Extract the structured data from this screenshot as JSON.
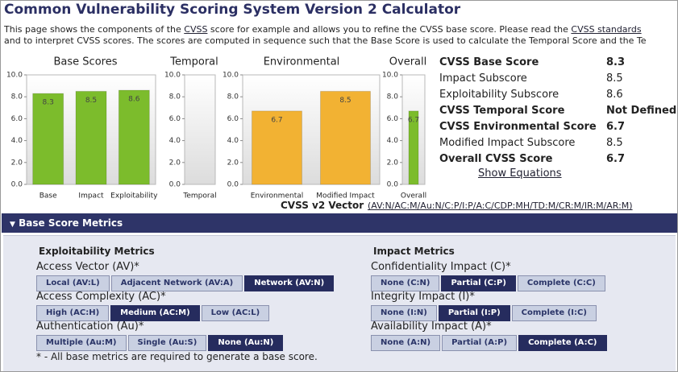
{
  "header": {
    "title": "Common Vulnerability Scoring System Version 2 Calculator",
    "description": [
      [
        "This page shows the components of the ",
        "CVSS",
        " score for example and allows you to refine the CVSS base score. Please read the ",
        "CVSS standards"
      ],
      [
        "and to interpret CVSS scores. The scores are computed in sequence such that the Base Score is used to calculate the Temporal Score and the Te"
      ]
    ]
  },
  "chart_data": [
    {
      "type": "bar",
      "title": "Base Scores",
      "categories": [
        "Base",
        "Impact",
        "Exploitability"
      ],
      "values": [
        8.3,
        8.5,
        8.6
      ],
      "color": "#7cbc2c",
      "ylim": [
        0,
        10
      ],
      "yticks": [
        {
          "value": 0,
          "label": "0.0"
        },
        {
          "value": 2,
          "label": "2.0"
        },
        {
          "value": 4,
          "label": "4.0"
        },
        {
          "value": 6,
          "label": "6.0"
        },
        {
          "value": 8,
          "label": "8.0"
        },
        {
          "value": 10,
          "label": "10.0"
        }
      ]
    },
    {
      "type": "bar",
      "title": "Temporal",
      "categories": [
        "Temporal"
      ],
      "values": [
        null
      ],
      "color": "#7cbc2c",
      "ylim": [
        0,
        10
      ],
      "yticks": [
        {
          "value": 0,
          "label": "0.0"
        },
        {
          "value": 2,
          "label": "2.0"
        },
        {
          "value": 4,
          "label": "4.0"
        },
        {
          "value": 6,
          "label": "6.0"
        },
        {
          "value": 8,
          "label": "8.0"
        },
        {
          "value": 10,
          "label": "10.0"
        }
      ]
    },
    {
      "type": "bar",
      "title": "Environmental",
      "categories": [
        "Environmental",
        "Modified Impact"
      ],
      "values": [
        6.7,
        8.5
      ],
      "color": "#f2b233",
      "ylim": [
        0,
        10
      ],
      "yticks": [
        {
          "value": 0,
          "label": "0.0"
        },
        {
          "value": 2,
          "label": "2.0"
        },
        {
          "value": 4,
          "label": "4.0"
        },
        {
          "value": 6,
          "label": "6.0"
        },
        {
          "value": 8,
          "label": "8.0"
        },
        {
          "value": 10,
          "label": "10.0"
        }
      ]
    },
    {
      "type": "bar",
      "title": "Overall",
      "categories": [
        "Overall"
      ],
      "values": [
        6.7
      ],
      "color": "#7cbc2c",
      "ylim": [
        0,
        10
      ],
      "yticks": [
        {
          "value": 0,
          "label": "0.0"
        },
        {
          "value": 2,
          "label": "2.0"
        },
        {
          "value": 4,
          "label": "4.0"
        },
        {
          "value": 6,
          "label": "6.0"
        },
        {
          "value": 8,
          "label": "8.0"
        },
        {
          "value": 10,
          "label": "10.0"
        }
      ]
    }
  ],
  "summary": {
    "rows": [
      {
        "label": "CVSS Base Score",
        "value": "8.3",
        "emphasis": true
      },
      {
        "label": "Impact Subscore",
        "value": "8.5",
        "emphasis": false
      },
      {
        "label": "Exploitability Subscore",
        "value": "8.6",
        "emphasis": false
      },
      {
        "label": "CVSS Temporal Score",
        "value": "Not Defined",
        "emphasis": true
      },
      {
        "label": "CVSS Environmental Score",
        "value": "6.7",
        "emphasis": true
      },
      {
        "label": "Modified Impact Subscore",
        "value": "8.5",
        "emphasis": false
      },
      {
        "label": "Overall CVSS Score",
        "value": "6.7",
        "emphasis": true
      }
    ],
    "link": "Show Equations"
  },
  "vector": {
    "label": "CVSS v2 Vector",
    "value": "(AV:N/AC:M/Au:N/C:P/I:P/A:C/CDP:MH/TD:M/CR:M/IR:M/AR:M)"
  },
  "section": {
    "title": "Base Score Metrics",
    "columns": [
      {
        "title": "Exploitability Metrics",
        "metrics": [
          {
            "label": "Access Vector (AV)*",
            "options": [
              "Local (AV:L)",
              "Adjacent Network (AV:A)",
              "Network (AV:N)"
            ],
            "selected": 2
          },
          {
            "label": "Access Complexity (AC)*",
            "options": [
              "High (AC:H)",
              "Medium (AC:M)",
              "Low (AC:L)"
            ],
            "selected": 1
          },
          {
            "label": "Authentication (Au)*",
            "options": [
              "Multiple (Au:M)",
              "Single (Au:S)",
              "None (Au:N)"
            ],
            "selected": 2
          }
        ]
      },
      {
        "title": "Impact Metrics",
        "metrics": [
          {
            "label": "Confidentiality Impact (C)*",
            "options": [
              "None (C:N)",
              "Partial (C:P)",
              "Complete (C:C)"
            ],
            "selected": 1
          },
          {
            "label": "Integrity Impact (I)*",
            "options": [
              "None (I:N)",
              "Partial (I:P)",
              "Complete (I:C)"
            ],
            "selected": 1
          },
          {
            "label": "Availability Impact (A)*",
            "options": [
              "None (A:N)",
              "Partial (A:P)",
              "Complete (A:C)"
            ],
            "selected": 2
          }
        ]
      }
    ],
    "footnote": "* - All base metrics are required to generate a base score."
  }
}
